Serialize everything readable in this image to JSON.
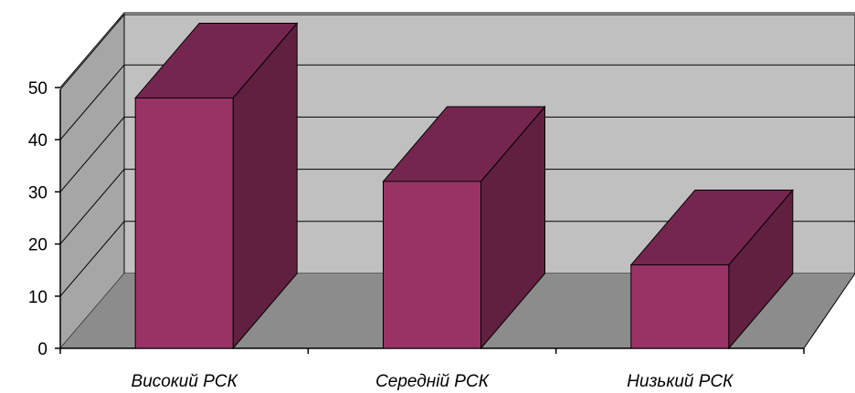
{
  "chart_data": {
    "type": "bar",
    "style": "3d-column",
    "categories": [
      "Високий РСК",
      "Середній РСК",
      "Низький РСК"
    ],
    "values": [
      48,
      32,
      16
    ],
    "ylim": [
      0,
      50
    ],
    "yticks": [
      "0",
      "10",
      "20",
      "30",
      "40",
      "50"
    ],
    "grid": true,
    "legend": "none",
    "colors": {
      "bar_front": "#993366",
      "bar_top": "#74264e",
      "bar_side": "#612040",
      "back_wall": "#c0c0c0",
      "side_wall": "#a6a6a6",
      "floor": "#8c8c8c"
    }
  }
}
